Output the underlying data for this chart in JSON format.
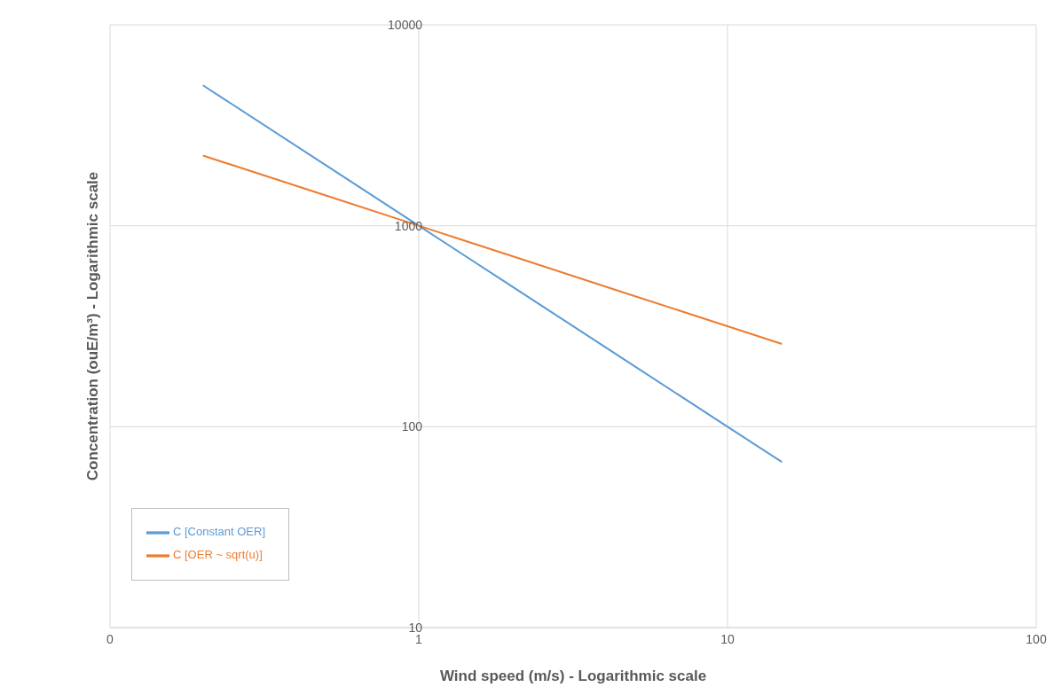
{
  "chart_data": {
    "type": "line",
    "xlabel": "Wind speed (m/s) - Logarithmic scale",
    "ylabel": "Concentration (ouE/m³) - Logarithmic scale",
    "log": "xy",
    "grid": true,
    "legend": "bottom left",
    "marker": "none",
    "line_style": "solid",
    "xlim": [
      0.1,
      100
    ],
    "xticks": [
      {
        "value": 0.1,
        "label": "0"
      },
      1,
      10,
      100
    ],
    "ylim": [
      10,
      10000
    ],
    "yticks": [
      10,
      100,
      1000,
      10000
    ],
    "series": [
      {
        "name": "C [Constant OER]",
        "color": "#5b9bd5",
        "x": [
          0.2,
          0.5,
          1,
          2,
          5,
          10,
          15
        ],
        "values": [
          5000,
          2000,
          1000,
          500,
          200,
          100,
          66.7
        ]
      },
      {
        "name": "C [OER ~ sqrt(u)]",
        "color": "#ed7d31",
        "x": [
          0.2,
          0.5,
          1,
          2,
          5,
          10,
          15
        ],
        "values": [
          2236,
          1414,
          1000,
          707,
          447,
          316,
          258
        ]
      }
    ]
  }
}
